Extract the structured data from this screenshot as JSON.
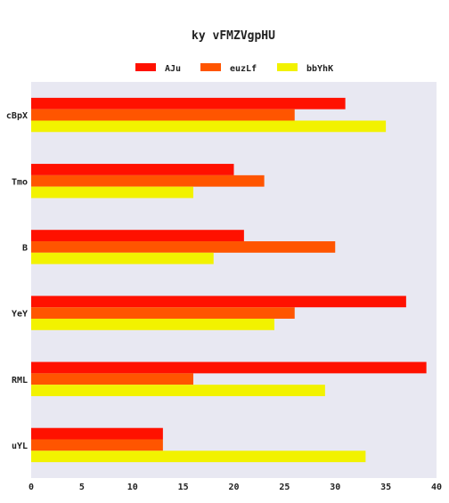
{
  "chart_data": {
    "type": "bar",
    "orientation": "horizontal",
    "title": "ky vFMZVgpHU",
    "categories": [
      "cBpX",
      "Tmo",
      "B",
      "YeY",
      "RML",
      "uYL"
    ],
    "series": [
      {
        "name": "AJu",
        "color": "#ff1100",
        "values": [
          31,
          20,
          21,
          37,
          39,
          13
        ]
      },
      {
        "name": "euzLf",
        "color": "#ff5500",
        "values": [
          26,
          23,
          30,
          26,
          16,
          13
        ]
      },
      {
        "name": "bbYhK",
        "color": "#f2f200",
        "values": [
          35,
          16,
          18,
          24,
          29,
          33
        ]
      }
    ],
    "xlim": [
      0,
      40
    ],
    "xticks": [
      0,
      5,
      10,
      15,
      20,
      25,
      30,
      35,
      40
    ],
    "xlabel": "",
    "ylabel": "",
    "grid": false,
    "legend_position": "top-center",
    "plot_background": "#e8e8f2"
  }
}
